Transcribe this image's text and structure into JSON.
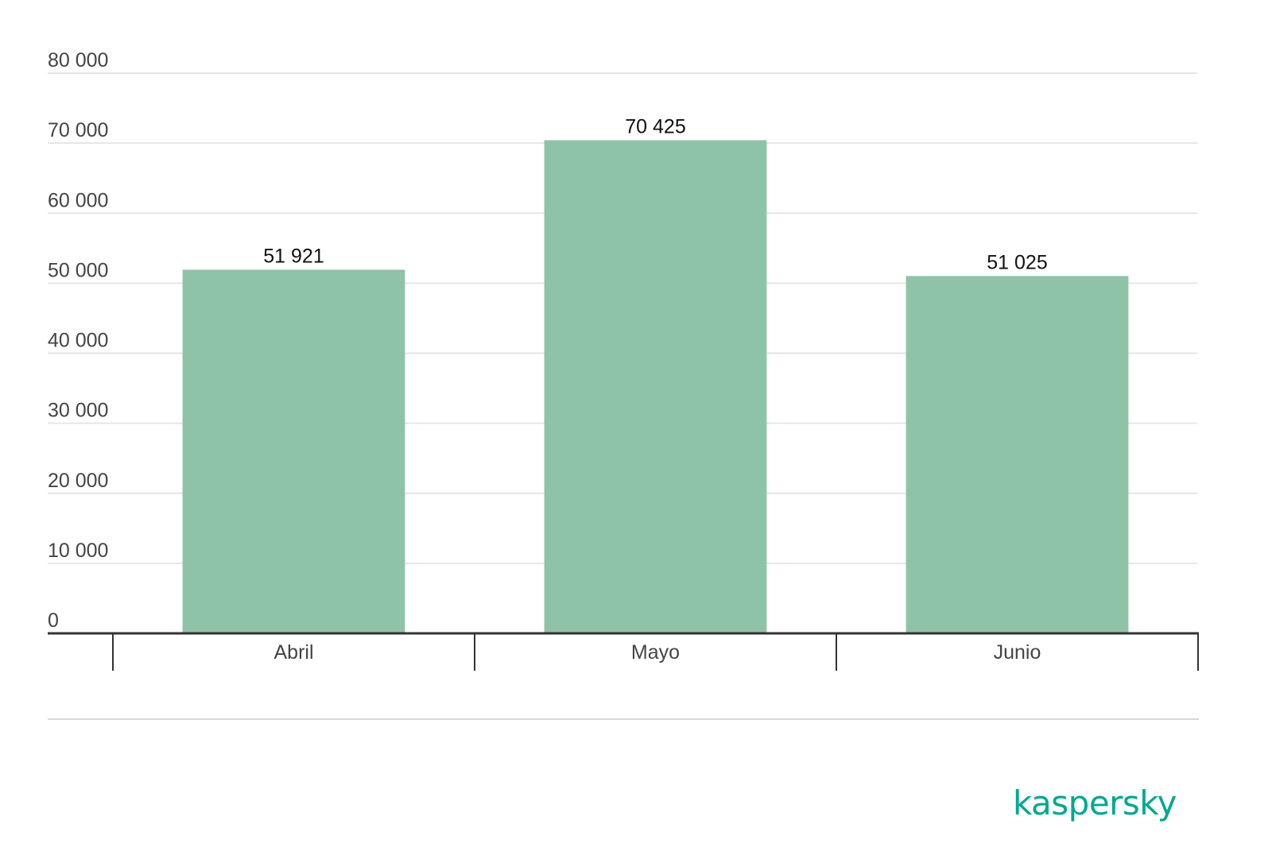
{
  "colors": {
    "bar": "#8fc3a7",
    "grid": "#e6e6e6",
    "axis": "#333333",
    "tick_text": "#444444",
    "value_text": "#111111",
    "footer_rule": "#d9d9d9",
    "brand": "#00a88e"
  },
  "brand": {
    "name": "kaspersky",
    "icon": "kaspersky-logo"
  },
  "chart_data": {
    "type": "bar",
    "categories": [
      "Abril",
      "Mayo",
      "Junio"
    ],
    "values": [
      51921,
      70425,
      51025
    ],
    "value_labels": [
      "51 921",
      "70 425",
      "51 025"
    ],
    "ylim": [
      0,
      80000
    ],
    "yticks": [
      0,
      10000,
      20000,
      30000,
      40000,
      50000,
      60000,
      70000,
      80000
    ],
    "ytick_labels": [
      "0",
      "10 000",
      "20 000",
      "30 000",
      "40 000",
      "50 000",
      "60 000",
      "70 000",
      "80 000"
    ],
    "grid": true,
    "title": "",
    "xlabel": "",
    "ylabel": ""
  }
}
